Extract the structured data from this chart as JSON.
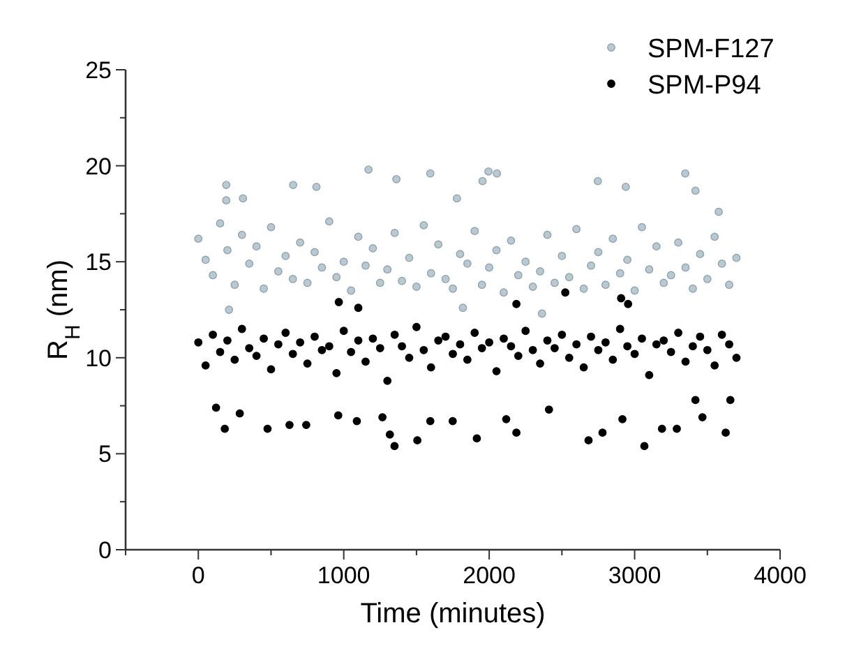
{
  "chart_data": {
    "type": "scatter",
    "xlabel": "Time (minutes)",
    "ylabel": "R$_{H}$ (nm)",
    "xlim": [
      -500,
      4000
    ],
    "xticks": [
      {
        "value": -500,
        "label": null
      },
      0,
      {
        "value": 500,
        "label": null
      },
      1000,
      {
        "value": 1500,
        "label": null
      },
      2000,
      {
        "value": 2500,
        "label": null
      },
      3000,
      {
        "value": 3500,
        "label": null
      },
      4000
    ],
    "ylim": [
      0,
      25
    ],
    "yticks": [
      0,
      {
        "value": 2.5,
        "label": null
      },
      5,
      {
        "value": 7.5,
        "label": null
      },
      10,
      {
        "value": 12.5,
        "label": null
      },
      15,
      {
        "value": 17.5,
        "label": null
      },
      20,
      {
        "value": 22.5,
        "label": null
      },
      25
    ],
    "grid": false,
    "legend": "top right",
    "marker": "circle",
    "series": [
      {
        "name": "SPM-F127",
        "color": "#b7c9d3",
        "x": [
          0,
          50,
          100,
          150,
          200,
          250,
          300,
          350,
          400,
          450,
          500,
          550,
          600,
          650,
          700,
          750,
          800,
          850,
          900,
          950,
          1000,
          1050,
          1100,
          1150,
          1200,
          1250,
          1300,
          1350,
          1400,
          1450,
          1500,
          1550,
          1600,
          1650,
          1700,
          1750,
          1800,
          1850,
          1900,
          1950,
          2000,
          2050,
          2100,
          2150,
          2200,
          2250,
          2300,
          2350,
          2400,
          2450,
          2500,
          2550,
          2600,
          2650,
          2700,
          2750,
          2800,
          2850,
          2900,
          2950,
          3000,
          3050,
          3100,
          3150,
          3200,
          3250,
          3300,
          3350,
          3400,
          3450,
          3500,
          3550,
          3600,
          3650,
          3700,
          192,
          192,
          307,
          652,
          812,
          1170,
          1362,
          1595,
          1954,
          1995,
          2053,
          2747,
          2939,
          3348,
          3418,
          3578,
          1778,
          211,
          1819,
          2363
        ],
        "values": [
          16.2,
          15.1,
          14.3,
          17.0,
          15.6,
          13.8,
          16.4,
          14.9,
          15.8,
          13.6,
          16.8,
          14.5,
          15.3,
          14.1,
          16.0,
          13.9,
          15.5,
          14.7,
          17.1,
          14.2,
          15.0,
          13.5,
          16.3,
          14.8,
          15.7,
          13.9,
          14.6,
          16.5,
          14.0,
          15.2,
          13.7,
          16.9,
          14.4,
          15.9,
          14.1,
          13.6,
          15.4,
          14.9,
          16.6,
          13.8,
          14.7,
          15.6,
          13.4,
          16.1,
          14.3,
          15.0,
          13.7,
          14.5,
          16.4,
          13.9,
          15.3,
          14.2,
          16.7,
          13.6,
          14.8,
          15.5,
          13.8,
          16.2,
          14.4,
          15.1,
          13.5,
          16.8,
          14.6,
          15.8,
          13.9,
          14.3,
          16.0,
          14.7,
          13.6,
          15.4,
          14.1,
          16.3,
          14.9,
          13.8,
          15.2,
          19.0,
          18.2,
          18.3,
          19.0,
          18.9,
          19.8,
          19.3,
          19.6,
          19.2,
          19.7,
          19.6,
          19.2,
          18.9,
          19.6,
          18.7,
          17.6,
          18.3,
          12.5,
          12.6,
          12.3
        ]
      },
      {
        "name": "SPM-P94",
        "color": "#000000",
        "x": [
          0,
          50,
          100,
          150,
          200,
          250,
          300,
          350,
          400,
          450,
          500,
          550,
          600,
          650,
          700,
          750,
          800,
          850,
          900,
          950,
          1000,
          1050,
          1100,
          1150,
          1200,
          1250,
          1300,
          1350,
          1400,
          1450,
          1500,
          1550,
          1600,
          1650,
          1700,
          1750,
          1800,
          1850,
          1900,
          1950,
          2000,
          2050,
          2100,
          2150,
          2200,
          2250,
          2300,
          2350,
          2400,
          2450,
          2500,
          2550,
          2600,
          2650,
          2700,
          2750,
          2800,
          2850,
          2900,
          2950,
          3000,
          3050,
          3100,
          3150,
          3200,
          3250,
          3300,
          3350,
          3400,
          3450,
          3500,
          3550,
          3600,
          3650,
          3700,
          182,
          122,
          285,
          476,
          627,
          742,
          962,
          1090,
          1266,
          1317,
          1349,
          1506,
          1595,
          1749,
          1915,
          2117,
          2187,
          2411,
          2683,
          2779,
          2916,
          3067,
          3188,
          3290,
          3466,
          3626,
          3658,
          3418,
          966,
          1100,
          2187,
          2955,
          2523,
          2907
        ],
        "values": [
          10.8,
          9.6,
          11.2,
          10.3,
          10.9,
          9.9,
          11.5,
          10.5,
          10.1,
          11.0,
          9.4,
          10.7,
          11.3,
          10.2,
          10.8,
          9.7,
          11.1,
          10.4,
          10.6,
          9.2,
          11.4,
          10.3,
          10.9,
          9.8,
          11.0,
          10.5,
          8.8,
          11.2,
          10.6,
          10.0,
          11.6,
          10.4,
          9.5,
          10.9,
          11.1,
          10.2,
          10.7,
          9.9,
          11.3,
          10.5,
          10.8,
          9.3,
          11.0,
          10.6,
          10.1,
          11.4,
          10.4,
          9.7,
          10.9,
          10.5,
          11.2,
          10.0,
          10.7,
          9.5,
          11.1,
          10.4,
          10.8,
          9.9,
          11.5,
          10.6,
          10.2,
          11.0,
          9.1,
          10.7,
          10.9,
          10.3,
          11.3,
          9.8,
          10.6,
          11.1,
          10.4,
          9.6,
          11.2,
          10.7,
          10.0,
          6.3,
          7.4,
          7.1,
          6.3,
          6.5,
          6.5,
          7.0,
          6.7,
          6.9,
          6.0,
          5.4,
          5.7,
          6.7,
          6.7,
          5.8,
          6.8,
          6.1,
          7.3,
          5.7,
          6.1,
          6.8,
          5.4,
          6.3,
          6.3,
          6.9,
          6.1,
          7.8,
          7.8,
          12.9,
          12.6,
          12.8,
          12.8,
          13.4,
          13.1
        ]
      }
    ]
  }
}
